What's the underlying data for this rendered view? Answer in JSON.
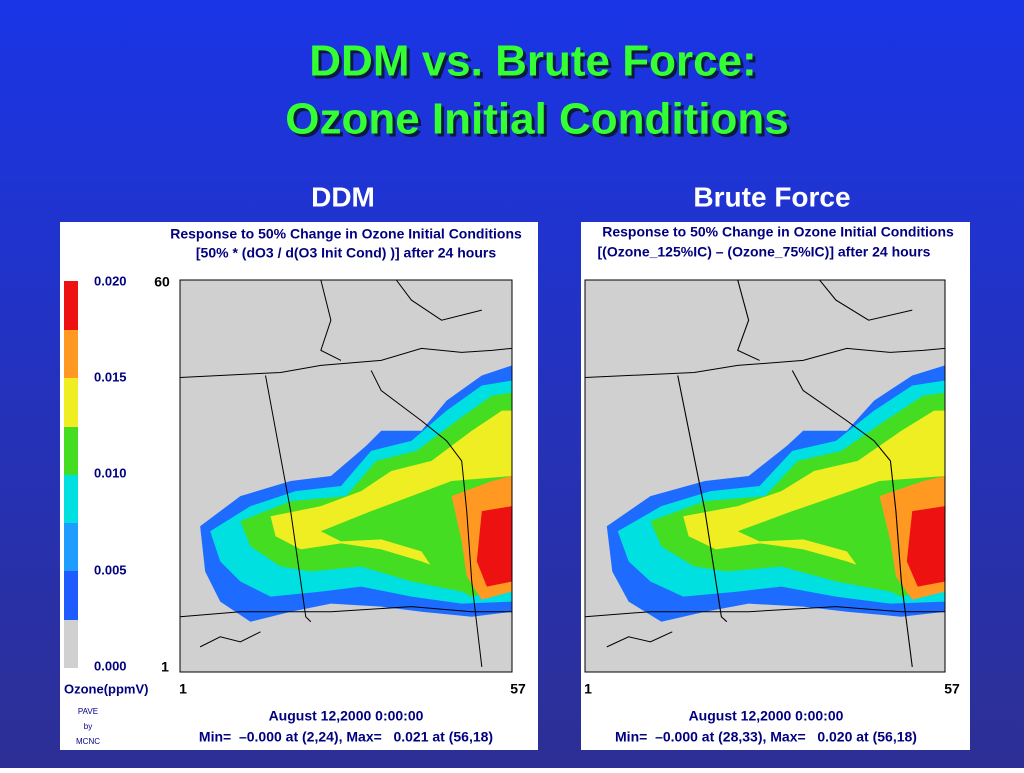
{
  "slide": {
    "title_line1": "DDM vs. Brute Force:",
    "title_line2": "Ozone Initial Conditions"
  },
  "panels": [
    {
      "heading": "DDM",
      "plot_title_line1": "Response to 50% Change in Ozone Initial Conditions",
      "plot_title_line2": "[50% * (dO3 / d(O3 Init Cond) )] after 24 hours",
      "y_axis_top": "60",
      "y_axis_bottom": "1",
      "x_axis_left": "1",
      "x_axis_right": "57",
      "timestamp": "August 12,2000 0:00:00",
      "stats": "Min=  –0.000 at (2,24), Max=   0.021 at (56,18)",
      "colorbar": {
        "labels": [
          "0.020",
          "0.015",
          "0.010",
          "0.005",
          "0.000"
        ],
        "unit": "Ozone(ppmV)"
      },
      "credit": [
        "PAVE",
        "by",
        "MCNC"
      ]
    },
    {
      "heading": "Brute Force",
      "plot_title_line1": "Response to 50% Change in Ozone Initial Conditions",
      "plot_title_line2": "[(Ozone_125%IC) – (Ozone_75%IC)] after 24 hours",
      "x_axis_left": "1",
      "x_axis_right": "57",
      "timestamp": "August 12,2000 0:00:00",
      "stats": "Min=  –0.000 at (28,33), Max=   0.020 at (56,18)"
    }
  ]
}
